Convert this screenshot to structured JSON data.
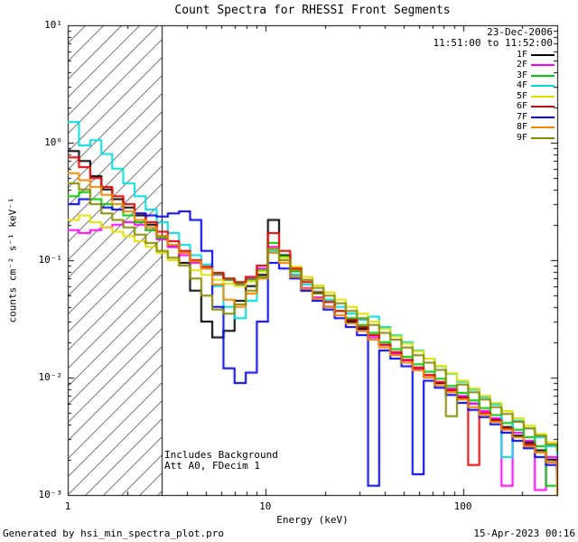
{
  "title": "Count Spectra for RHESSI Front Segments",
  "header": {
    "date": "23-Dec-2006",
    "time_range": "11:51:00 to 11:52:00"
  },
  "annotations": {
    "background": "Includes Background",
    "attenuator": "Att A0, FDecim 1"
  },
  "footer": {
    "generated_by": "Generated by hsi_min_spectra_plot.pro",
    "timestamp": "15-Apr-2023 00:16"
  },
  "chart_data": {
    "type": "line",
    "style": "step-histogram",
    "x_scale": "log",
    "y_scale": "log",
    "xlabel": "Energy (keV)",
    "ylabel": "counts cm⁻² s⁻¹ keV⁻¹",
    "xlim": [
      1,
      300
    ],
    "ylim": [
      0.001,
      10
    ],
    "x_tick_values": [
      1,
      10,
      100
    ],
    "x_tick_labels": [
      "1",
      "10",
      "100"
    ],
    "y_tick_values": [
      10,
      1,
      0.1,
      0.01,
      0.001
    ],
    "y_tick_labels": [
      "10¹",
      "10⁰",
      "10⁻¹",
      "10⁻²",
      "10⁻³"
    ],
    "grid": false,
    "legend_position": "top-right-inside",
    "hatch_region": {
      "from": 1,
      "to": 3
    },
    "energies_kev": [
      1.0,
      1.14,
      1.3,
      1.48,
      1.68,
      1.91,
      2.18,
      2.48,
      2.82,
      3.21,
      3.66,
      4.16,
      4.74,
      5.39,
      6.14,
      6.99,
      7.96,
      9.06,
      10.31,
      11.74,
      13.36,
      15.21,
      17.32,
      19.71,
      22.44,
      25.54,
      29.08,
      33.1,
      37.68,
      42.9,
      48.83,
      55.59,
      63.28,
      72.03,
      82.0,
      93.34,
      106.25,
      120.95,
      137.68,
      156.73,
      178.41,
      203.09,
      231.18,
      263.16,
      299.56
    ],
    "series": [
      {
        "name": "1F",
        "color": "#000000",
        "values": [
          0.85,
          0.7,
          0.52,
          0.4,
          0.33,
          0.28,
          0.24,
          0.2,
          0.16,
          0.13,
          0.095,
          0.055,
          0.03,
          0.022,
          0.025,
          0.045,
          0.06,
          0.075,
          0.22,
          0.11,
          0.075,
          0.055,
          0.048,
          0.04,
          0.034,
          0.03,
          0.026,
          0.021,
          0.019,
          0.016,
          0.014,
          0.012,
          0.01,
          0.009,
          0.008,
          0.0068,
          0.006,
          0.0052,
          0.0044,
          0.0038,
          0.0032,
          0.0028,
          0.0024,
          0.002,
          0.0017
        ]
      },
      {
        "name": "2F",
        "color": "#ff00ff",
        "values": [
          0.18,
          0.17,
          0.18,
          0.19,
          0.2,
          0.21,
          0.2,
          0.18,
          0.15,
          0.13,
          0.11,
          0.095,
          0.085,
          0.075,
          0.068,
          0.062,
          0.07,
          0.085,
          0.13,
          0.1,
          0.075,
          0.058,
          0.048,
          0.04,
          0.034,
          0.029,
          0.025,
          0.022,
          0.019,
          0.016,
          0.014,
          0.012,
          0.0105,
          0.0092,
          0.008,
          0.007,
          0.006,
          0.0052,
          0.0045,
          0.0012,
          0.0034,
          0.0029,
          0.0011,
          0.0021,
          0.0013
        ]
      },
      {
        "name": "3F",
        "color": "#00cc00",
        "values": [
          0.35,
          0.38,
          0.33,
          0.3,
          0.27,
          0.24,
          0.21,
          0.18,
          0.155,
          0.135,
          0.115,
          0.098,
          0.086,
          0.076,
          0.068,
          0.063,
          0.068,
          0.082,
          0.14,
          0.108,
          0.08,
          0.062,
          0.052,
          0.044,
          0.037,
          0.032,
          0.028,
          0.024,
          0.02,
          0.0175,
          0.015,
          0.013,
          0.0112,
          0.0098,
          0.0085,
          0.0074,
          0.0064,
          0.0055,
          0.0048,
          0.0041,
          0.0036,
          0.0031,
          0.0026,
          0.0012,
          0.0019
        ]
      },
      {
        "name": "4F",
        "color": "#00dddd",
        "values": [
          1.5,
          0.95,
          1.05,
          0.8,
          0.6,
          0.45,
          0.35,
          0.27,
          0.21,
          0.17,
          0.135,
          0.11,
          0.092,
          0.06,
          0.04,
          0.032,
          0.045,
          0.07,
          0.12,
          0.095,
          0.075,
          0.062,
          0.054,
          0.046,
          0.04,
          0.035,
          0.031,
          0.033,
          0.027,
          0.023,
          0.02,
          0.017,
          0.0145,
          0.0125,
          0.0108,
          0.0092,
          0.0079,
          0.0068,
          0.0059,
          0.0021,
          0.0043,
          0.0037,
          0.0031,
          0.0026,
          0.0022
        ]
      },
      {
        "name": "5F",
        "color": "#e0e000",
        "values": [
          0.22,
          0.24,
          0.21,
          0.19,
          0.175,
          0.16,
          0.145,
          0.13,
          0.115,
          0.1,
          0.09,
          0.082,
          0.075,
          0.068,
          0.063,
          0.06,
          0.066,
          0.08,
          0.125,
          0.105,
          0.088,
          0.072,
          0.061,
          0.053,
          0.046,
          0.04,
          0.035,
          0.03,
          0.026,
          0.0225,
          0.0195,
          0.0168,
          0.0145,
          0.0126,
          0.0109,
          0.0094,
          0.0081,
          0.007,
          0.0061,
          0.0052,
          0.0045,
          0.0039,
          0.0033,
          0.0028,
          0.0024
        ]
      },
      {
        "name": "6F",
        "color": "#e60000",
        "values": [
          0.75,
          0.62,
          0.5,
          0.42,
          0.35,
          0.3,
          0.25,
          0.21,
          0.175,
          0.145,
          0.12,
          0.1,
          0.088,
          0.078,
          0.07,
          0.065,
          0.072,
          0.09,
          0.17,
          0.12,
          0.085,
          0.065,
          0.053,
          0.044,
          0.037,
          0.031,
          0.027,
          0.023,
          0.019,
          0.0165,
          0.0142,
          0.0122,
          0.0105,
          0.0091,
          0.0078,
          0.0067,
          0.0018,
          0.005,
          0.0043,
          0.0037,
          0.0031,
          0.0027,
          0.0023,
          0.0019,
          0.0016
        ]
      },
      {
        "name": "7F",
        "color": "#0000ee",
        "values": [
          0.3,
          0.33,
          0.3,
          0.28,
          0.27,
          0.26,
          0.25,
          0.24,
          0.235,
          0.25,
          0.26,
          0.22,
          0.12,
          0.04,
          0.012,
          0.009,
          0.011,
          0.03,
          0.095,
          0.085,
          0.07,
          0.055,
          0.045,
          0.038,
          0.032,
          0.027,
          0.023,
          0.0012,
          0.017,
          0.0145,
          0.0125,
          0.0015,
          0.0094,
          0.0082,
          0.0071,
          0.0061,
          0.0053,
          0.0046,
          0.004,
          0.0034,
          0.0029,
          0.0025,
          0.0021,
          0.0018,
          0.0015
        ]
      },
      {
        "name": "8F",
        "color": "#ee8800",
        "values": [
          0.55,
          0.48,
          0.42,
          0.36,
          0.3,
          0.26,
          0.22,
          0.19,
          0.16,
          0.135,
          0.115,
          0.098,
          0.085,
          0.062,
          0.046,
          0.04,
          0.052,
          0.07,
          0.115,
          0.095,
          0.072,
          0.057,
          0.047,
          0.04,
          0.034,
          0.029,
          0.025,
          0.021,
          0.018,
          0.0155,
          0.0134,
          0.0115,
          0.01,
          0.0086,
          0.0075,
          0.0065,
          0.0056,
          0.0048,
          0.0042,
          0.0036,
          0.0031,
          0.0026,
          0.0023,
          0.0019,
          0.001
        ]
      },
      {
        "name": "9F",
        "color": "#8a8a00",
        "values": [
          0.45,
          0.4,
          0.3,
          0.25,
          0.22,
          0.19,
          0.165,
          0.14,
          0.12,
          0.105,
          0.09,
          0.07,
          0.05,
          0.038,
          0.035,
          0.042,
          0.055,
          0.072,
          0.125,
          0.1,
          0.082,
          0.068,
          0.058,
          0.05,
          0.043,
          0.037,
          0.032,
          0.028,
          0.024,
          0.021,
          0.018,
          0.0155,
          0.0134,
          0.0116,
          0.0047,
          0.0087,
          0.0075,
          0.0065,
          0.0056,
          0.0049,
          0.0042,
          0.0037,
          0.0032,
          0.0027,
          0.0024
        ]
      }
    ]
  }
}
